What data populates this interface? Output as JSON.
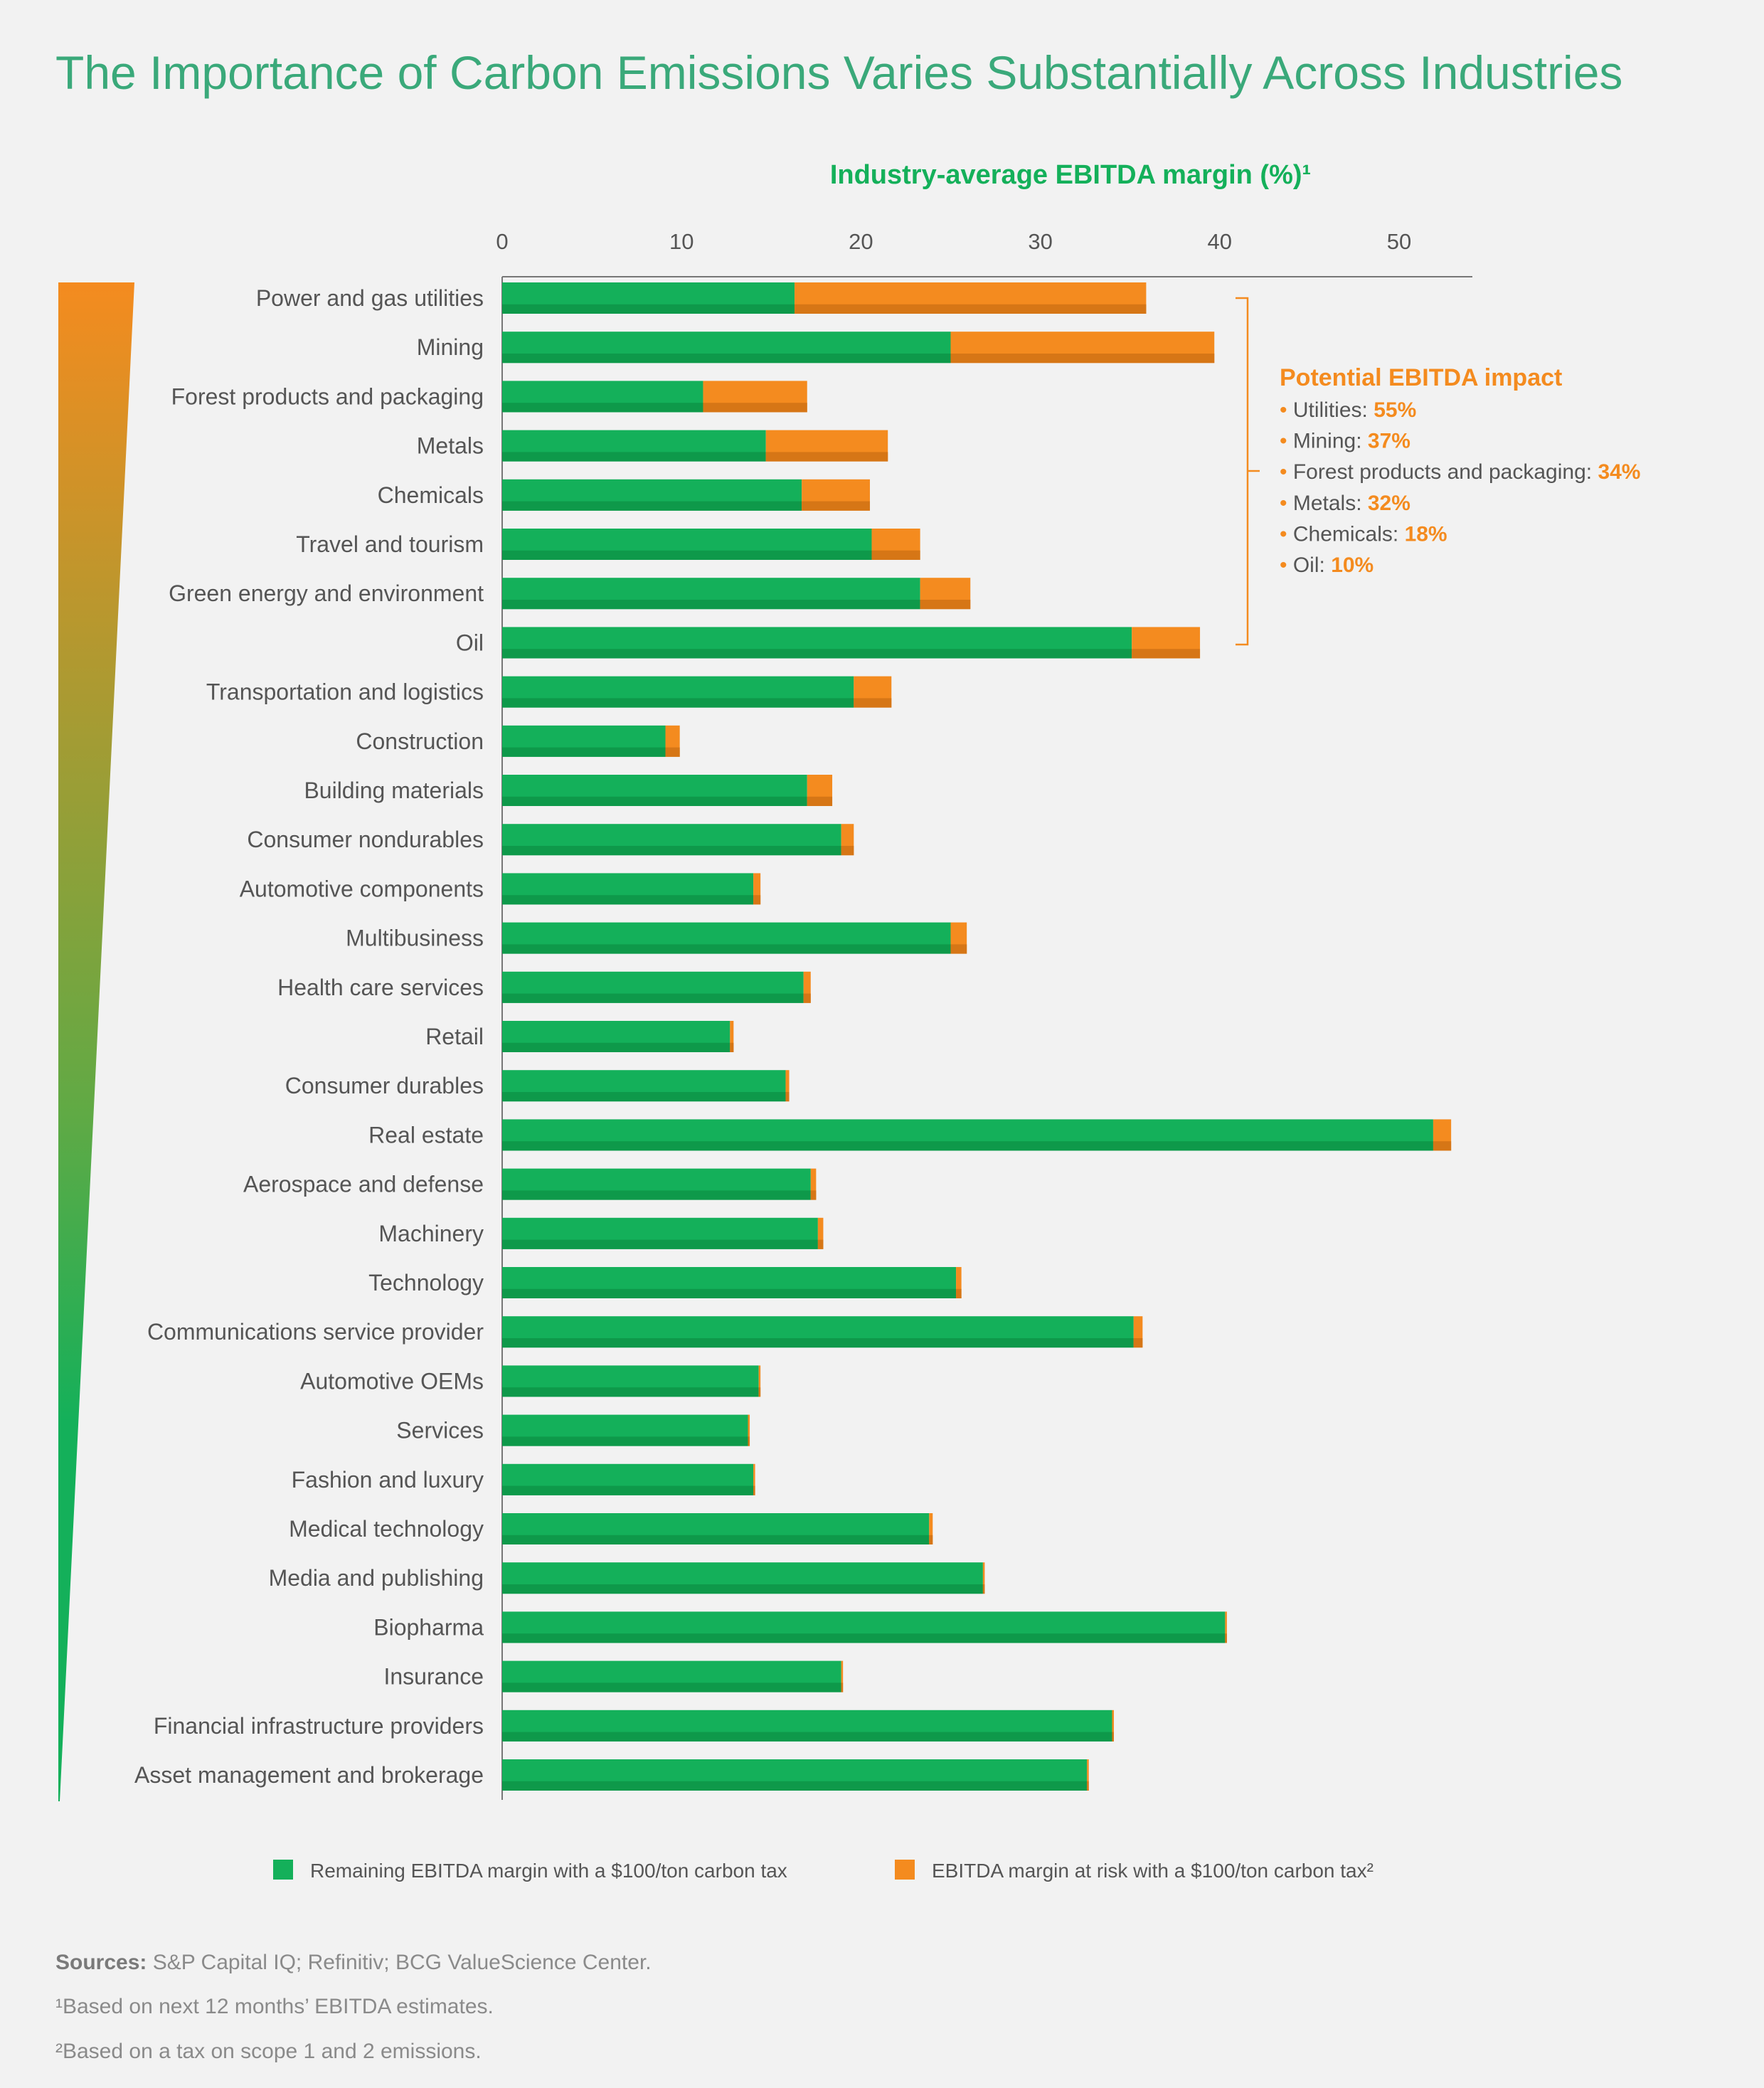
{
  "title": "The Importance of Carbon Emissions Varies Substantially Across Industries",
  "colors": {
    "remaining": "#14b05a",
    "remaining_dark": "#0e994a",
    "at_risk": "#f48b1f",
    "at_risk_dark": "#d67616",
    "title": "#3aa97a",
    "axis_title": "#14b05a",
    "background": "#f2f2f2"
  },
  "chart_data": {
    "type": "bar",
    "orientation": "horizontal",
    "stacked": true,
    "xlabel": "Industry-average EBITDA margin (%)¹",
    "xlim": [
      0,
      54
    ],
    "xticks": [
      0,
      10,
      20,
      30,
      40,
      50
    ],
    "grid": false,
    "legend_placement": "bottom",
    "categories": [
      "Power and gas utilities",
      "Mining",
      "Forest products and packaging",
      "Metals",
      "Chemicals",
      "Travel and tourism",
      "Green energy and environment",
      "Oil",
      "Transportation and logistics",
      "Construction",
      "Building materials",
      "Consumer nondurables",
      "Automotive components",
      "Multibusiness",
      "Health care services",
      "Retail",
      "Consumer durables",
      "Real estate",
      "Aerospace and defense",
      "Machinery",
      "Technology",
      "Communications service provider",
      "Automotive OEMs",
      "Services",
      "Fashion and luxury",
      "Medical technology",
      "Media and publishing",
      "Biopharma",
      "Insurance",
      "Financial infrastructure providers",
      "Asset management and brokerage"
    ],
    "series": [
      {
        "name": "Remaining EBITDA margin with a $100/ton carbon tax",
        "values": [
          16.3,
          25.0,
          11.2,
          14.7,
          16.7,
          20.6,
          23.3,
          35.1,
          19.6,
          9.1,
          17.0,
          18.9,
          14.0,
          25.0,
          16.8,
          12.7,
          15.8,
          51.9,
          17.2,
          17.6,
          25.3,
          35.2,
          14.3,
          13.7,
          14.0,
          23.8,
          26.8,
          40.3,
          18.9,
          34.0,
          32.6
        ]
      },
      {
        "name": "EBITDA margin at risk with a $100/ton carbon tax²",
        "values": [
          19.6,
          14.7,
          5.8,
          6.8,
          3.8,
          2.7,
          2.8,
          3.8,
          2.1,
          0.8,
          1.4,
          0.7,
          0.4,
          0.9,
          0.4,
          0.2,
          0.2,
          1.0,
          0.3,
          0.3,
          0.3,
          0.5,
          0.1,
          0.1,
          0.1,
          0.2,
          0.1,
          0.1,
          0.1,
          0.1,
          0.1
        ]
      }
    ],
    "annotation": {
      "title": "Potential EBITDA impact",
      "items": [
        {
          "label": "Utilities:",
          "value": "55%"
        },
        {
          "label": "Mining:",
          "value": "37%"
        },
        {
          "label": "Forest products and packaging:",
          "value": "34%"
        },
        {
          "label": "Metals:",
          "value": "32%"
        },
        {
          "label": "Chemicals:",
          "value": "18%"
        },
        {
          "label": "Oil:",
          "value": "10%"
        }
      ]
    }
  },
  "footnotes": {
    "sources_label": "Sources:",
    "sources_text": " S&P Capital IQ; Refinitiv; BCG ValueScience Center.",
    "note1": "¹Based on next 12 months’ EBITDA estimates.",
    "note2": "²Based on a tax on scope 1 and 2 emissions."
  }
}
